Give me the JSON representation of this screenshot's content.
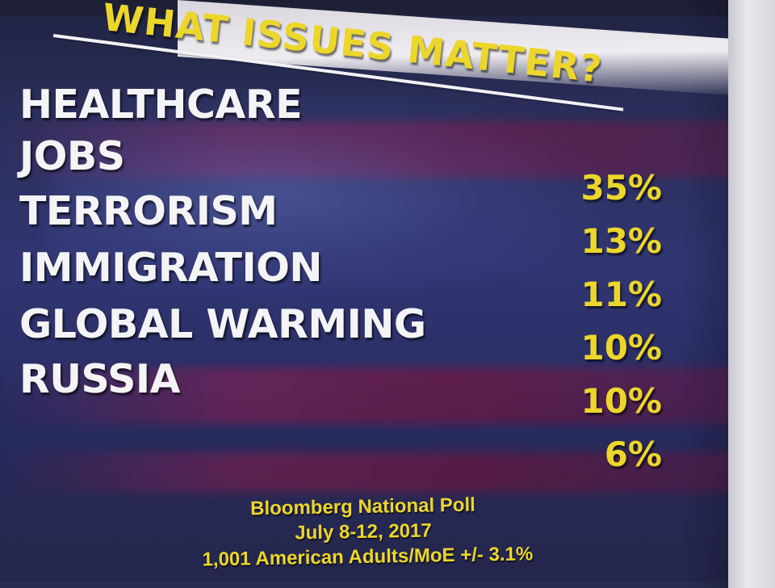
{
  "title": "WHAT ISSUES MATTER?",
  "issues": [
    {
      "label": "HEALTHCARE",
      "pct": "35%"
    },
    {
      "label": "JOBS",
      "pct": "13%"
    },
    {
      "label": "TERRORISM",
      "pct": "11%"
    },
    {
      "label": "IMMIGRATION",
      "pct": "10%"
    },
    {
      "label": "GLOBAL WARMING",
      "pct": "10%"
    },
    {
      "label": "RUSSIA",
      "pct": "6%"
    }
  ],
  "source": {
    "line1": "Bloomberg National Poll",
    "line2": "July 8-12, 2017",
    "line3": "1,001 American Adults/MoE +/- 3.1%"
  },
  "colors": {
    "accent_yellow": "#ecd62a",
    "label_white": "#f4f4f6",
    "background_blue": "#343a78",
    "stripe_red": "#aa1e50"
  }
}
